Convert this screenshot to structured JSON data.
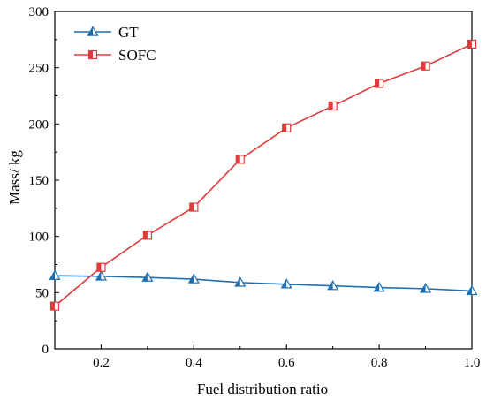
{
  "chart_data": {
    "type": "line",
    "xlabel": "Fuel distribution ratio",
    "ylabel": "Mass/ kg",
    "xlim": [
      0.1,
      1.0
    ],
    "ylim": [
      0,
      300
    ],
    "x_ticks": [
      0.2,
      0.4,
      0.6,
      0.8,
      1.0
    ],
    "x_tick_labels": [
      "0.2",
      "0.4",
      "0.6",
      "0.8",
      "1.0"
    ],
    "y_ticks": [
      0,
      50,
      100,
      150,
      200,
      250,
      300
    ],
    "y_tick_labels": [
      "0",
      "50",
      "100",
      "150",
      "200",
      "250",
      "300"
    ],
    "grid": false,
    "legend_position": "top-left",
    "x": [
      0.1,
      0.2,
      0.3,
      0.4,
      0.5,
      0.6,
      0.7,
      0.8,
      0.9,
      1.0
    ],
    "series": [
      {
        "name": "GT",
        "color": "#1f6fb0",
        "marker": "triangle",
        "values": [
          65,
          64.5,
          63.5,
          62,
          59,
          57.5,
          56,
          54.5,
          53.5,
          51.5
        ]
      },
      {
        "name": "SOFC",
        "color": "#e03b3b",
        "marker": "square",
        "values": [
          38,
          72.5,
          101,
          126,
          168.5,
          196.5,
          216,
          236,
          251.5,
          271
        ]
      }
    ]
  }
}
